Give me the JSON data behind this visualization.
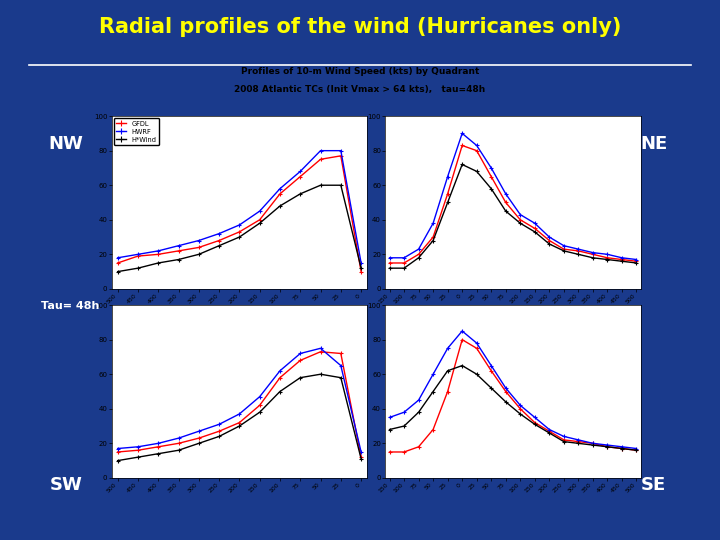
{
  "title": "Radial profiles of the wind (Hurricanes only)",
  "title_color": "#FFFF00",
  "bg_color": "#1a3a8c",
  "content_bg": "#d0d0d0",
  "subtitle1": "Profiles of 10-m Wind Speed (kts) by Quadrant",
  "subtitle2": "2008 Atlantic TCs (Init Vmax > 64 kts),   tau=48h",
  "labels": {
    "nw": "NW",
    "ne": "NE",
    "sw": "SW",
    "se": "SE",
    "tau": "Tau= 48h"
  },
  "label_bg": "#1a4aaa",
  "label_color": "white",
  "legend": [
    "GFDL",
    "HWRF",
    "H*Wind"
  ],
  "line_colors": [
    "red",
    "blue",
    "black"
  ],
  "x_ticks_left": [
    500,
    450,
    400,
    350,
    300,
    250,
    200,
    150,
    100,
    75,
    50,
    25,
    0
  ],
  "x_ticks_right": [
    "150",
    "100",
    "75",
    "50",
    "25",
    "0",
    "25",
    "50",
    "75",
    "100",
    "150",
    "200",
    "250",
    "300",
    "350",
    "400",
    "450",
    "500"
  ],
  "nw_gfdl": [
    15,
    19,
    20,
    22,
    24,
    28,
    33,
    40,
    55,
    65,
    75,
    77,
    10
  ],
  "nw_hwrf": [
    18,
    20,
    22,
    25,
    28,
    32,
    37,
    45,
    58,
    68,
    80,
    80,
    15
  ],
  "nw_hwind": [
    10,
    12,
    15,
    17,
    20,
    25,
    30,
    38,
    48,
    55,
    60,
    60,
    12
  ],
  "ne_gfdl": [
    15,
    15,
    20,
    30,
    55,
    83,
    80,
    65,
    50,
    40,
    35,
    28,
    23,
    22,
    20,
    18,
    17,
    16
  ],
  "ne_hwrf": [
    18,
    18,
    23,
    38,
    65,
    90,
    83,
    70,
    55,
    43,
    38,
    30,
    25,
    23,
    21,
    20,
    18,
    17
  ],
  "ne_hwind": [
    12,
    12,
    18,
    28,
    50,
    72,
    68,
    58,
    45,
    38,
    33,
    26,
    22,
    20,
    18,
    17,
    16,
    15
  ],
  "sw_gfdl": [
    15,
    16,
    18,
    20,
    23,
    27,
    32,
    42,
    58,
    68,
    73,
    72,
    12
  ],
  "sw_hwrf": [
    17,
    18,
    20,
    23,
    27,
    31,
    37,
    47,
    62,
    72,
    75,
    65,
    15
  ],
  "sw_hwind": [
    10,
    12,
    14,
    16,
    20,
    24,
    30,
    38,
    50,
    58,
    60,
    58,
    11
  ],
  "se_gfdl": [
    15,
    15,
    18,
    28,
    50,
    80,
    75,
    62,
    50,
    40,
    32,
    27,
    22,
    21,
    20,
    18,
    17,
    16
  ],
  "se_hwrf": [
    35,
    38,
    45,
    60,
    75,
    85,
    78,
    65,
    52,
    42,
    35,
    28,
    24,
    22,
    20,
    19,
    18,
    17
  ],
  "se_hwind": [
    28,
    30,
    38,
    50,
    62,
    65,
    60,
    52,
    44,
    37,
    31,
    26,
    21,
    20,
    19,
    18,
    17,
    16
  ]
}
